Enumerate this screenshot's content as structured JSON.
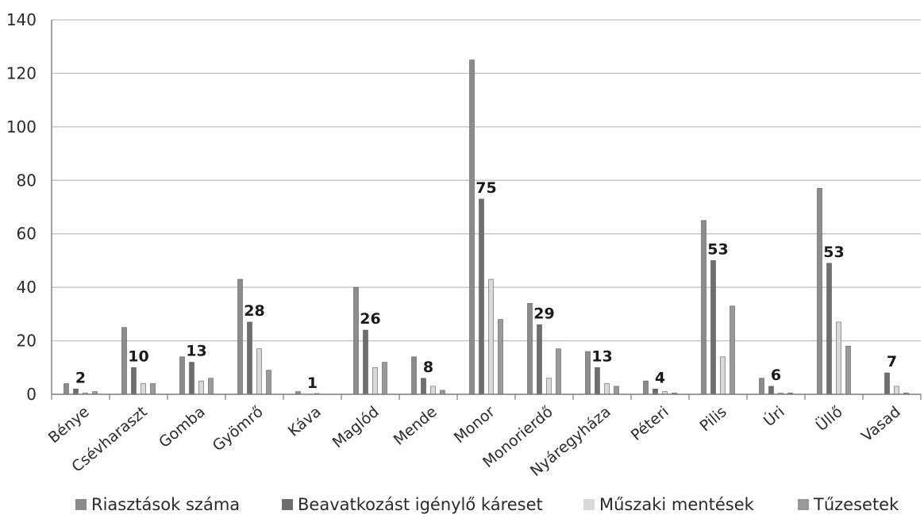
{
  "chart_data": {
    "type": "bar",
    "categories": [
      "Bénye",
      "Csévharaszt",
      "Gomba",
      "Gyömrő",
      "Káva",
      "Maglód",
      "Mende",
      "Monor",
      "Monorierdő",
      "Nyáregyháza",
      "Péteri",
      "Pilis",
      "Úri",
      "Üllő",
      "Vasad"
    ],
    "series": [
      {
        "name": "Riasztások száma",
        "color": "#8c8c8c",
        "values": [
          4,
          25,
          14,
          43,
          1,
          40,
          14,
          125,
          34,
          16,
          5,
          65,
          6,
          77,
          0
        ]
      },
      {
        "name": "Beavatkozást igénylő káreset",
        "color": "#6e6e6e",
        "values": [
          2,
          10,
          12,
          27,
          0,
          24,
          6,
          73,
          26,
          10,
          2,
          50,
          3,
          49,
          8
        ]
      },
      {
        "name": "Műszaki mentések",
        "color": "#d9d9d9",
        "values": [
          0.5,
          4,
          5,
          17,
          0.3,
          10,
          3,
          43,
          6,
          4,
          1,
          14,
          0.5,
          27,
          3
        ]
      },
      {
        "name": "Tűzesetek",
        "color": "#9a9a9a",
        "values": [
          1,
          4,
          6,
          9,
          0,
          12,
          1.5,
          28,
          17,
          3,
          0.5,
          33,
          0.5,
          18,
          0.5
        ]
      }
    ],
    "data_labels": [
      "2",
      "10",
      "13",
      "28",
      "1",
      "26",
      "8",
      "75",
      "29",
      "13",
      "4",
      "53",
      "6",
      "53",
      "7"
    ],
    "yticks": [
      "0",
      "20",
      "40",
      "60",
      "80",
      "100",
      "120",
      "140"
    ],
    "ylim": [
      0,
      140
    ],
    "grid": true,
    "legend_position": "bottom",
    "title": "",
    "xlabel": "",
    "ylabel": ""
  }
}
